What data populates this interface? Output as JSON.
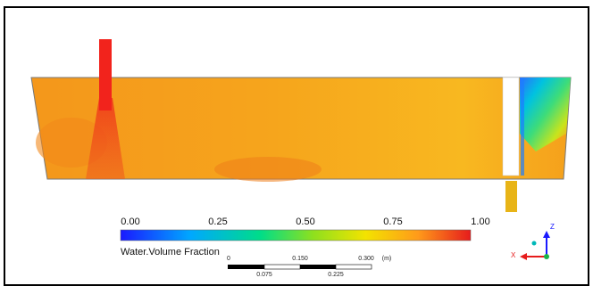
{
  "legend": {
    "ticks": [
      "0.00",
      "0.25",
      "0.50",
      "0.75",
      "1.00"
    ],
    "title": "Water.Volume Fraction",
    "colors": [
      "#1a1aff",
      "#00b0ff",
      "#00d98a",
      "#9be020",
      "#f7e600",
      "#ff9a1a",
      "#e8231c"
    ]
  },
  "scale_bar": {
    "top_labels": [
      "0",
      "0.150",
      "0.300"
    ],
    "unit": "(m)",
    "bottom_labels": [
      "0.075",
      "0.225"
    ]
  },
  "triad": {
    "z": "Z",
    "x": "X"
  },
  "colors": {
    "water": "#f7a21a",
    "inlet": "#f2231c",
    "outlet": "#e8b417"
  }
}
